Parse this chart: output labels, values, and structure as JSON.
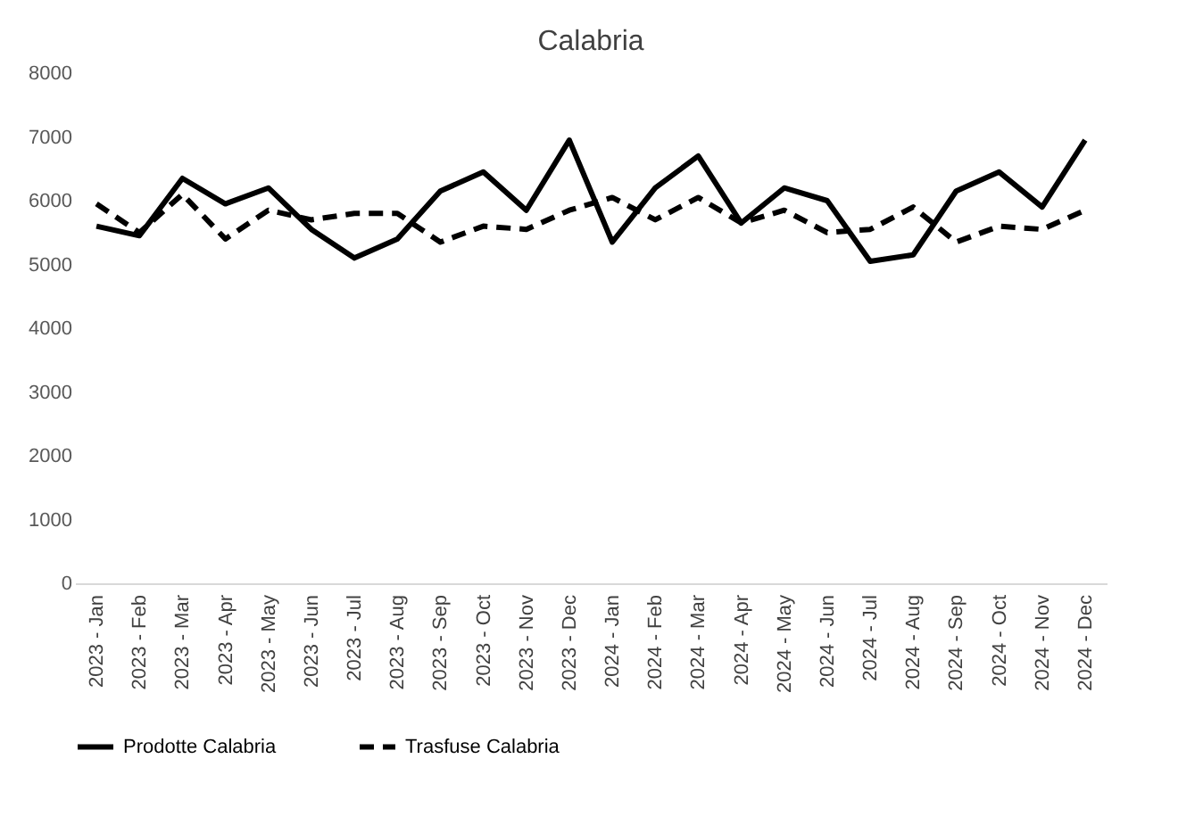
{
  "chart_data": {
    "type": "line",
    "title": "Calabria",
    "categories": [
      "2023 - Jan",
      "2023 - Feb",
      "2023 - Mar",
      "2023 - Apr",
      "2023 - May",
      "2023 - Jun",
      "2023 - Jul",
      "2023 - Aug",
      "2023 - Sep",
      "2023 - Oct",
      "2023 - Nov",
      "2023 - Dec",
      "2024 - Jan",
      "2024 - Feb",
      "2024 - Mar",
      "2024 - Apr",
      "2024 - May",
      "2024 - Jun",
      "2024 - Jul",
      "2024 - Aug",
      "2024 - Sep",
      "2024 - Oct",
      "2024 - Nov",
      "2024 - Dec"
    ],
    "series": [
      {
        "name": "Prodotte Calabria",
        "color": "#000000",
        "line_style": "solid",
        "values": [
          5600,
          5450,
          6350,
          5950,
          6200,
          5550,
          5100,
          5400,
          6150,
          6450,
          5850,
          6950,
          5350,
          6200,
          6700,
          5650,
          6200,
          6000,
          5050,
          5150,
          6150,
          6450,
          5900,
          6950
        ]
      },
      {
        "name": "Trasfuse  Calabria",
        "color": "#000000",
        "line_style": "dashed",
        "values": [
          5950,
          5500,
          6100,
          5400,
          5850,
          5700,
          5800,
          5800,
          5350,
          5600,
          5550,
          5850,
          6050,
          5700,
          6050,
          5650,
          5850,
          5500,
          5550,
          5900,
          5350,
          5600,
          5550,
          5850
        ]
      }
    ],
    "ylim": [
      0,
      8000
    ],
    "yticks": [
      0,
      1000,
      2000,
      3000,
      4000,
      5000,
      6000,
      7000,
      8000
    ],
    "grid": false,
    "legend": "bottom",
    "marker": "none"
  }
}
